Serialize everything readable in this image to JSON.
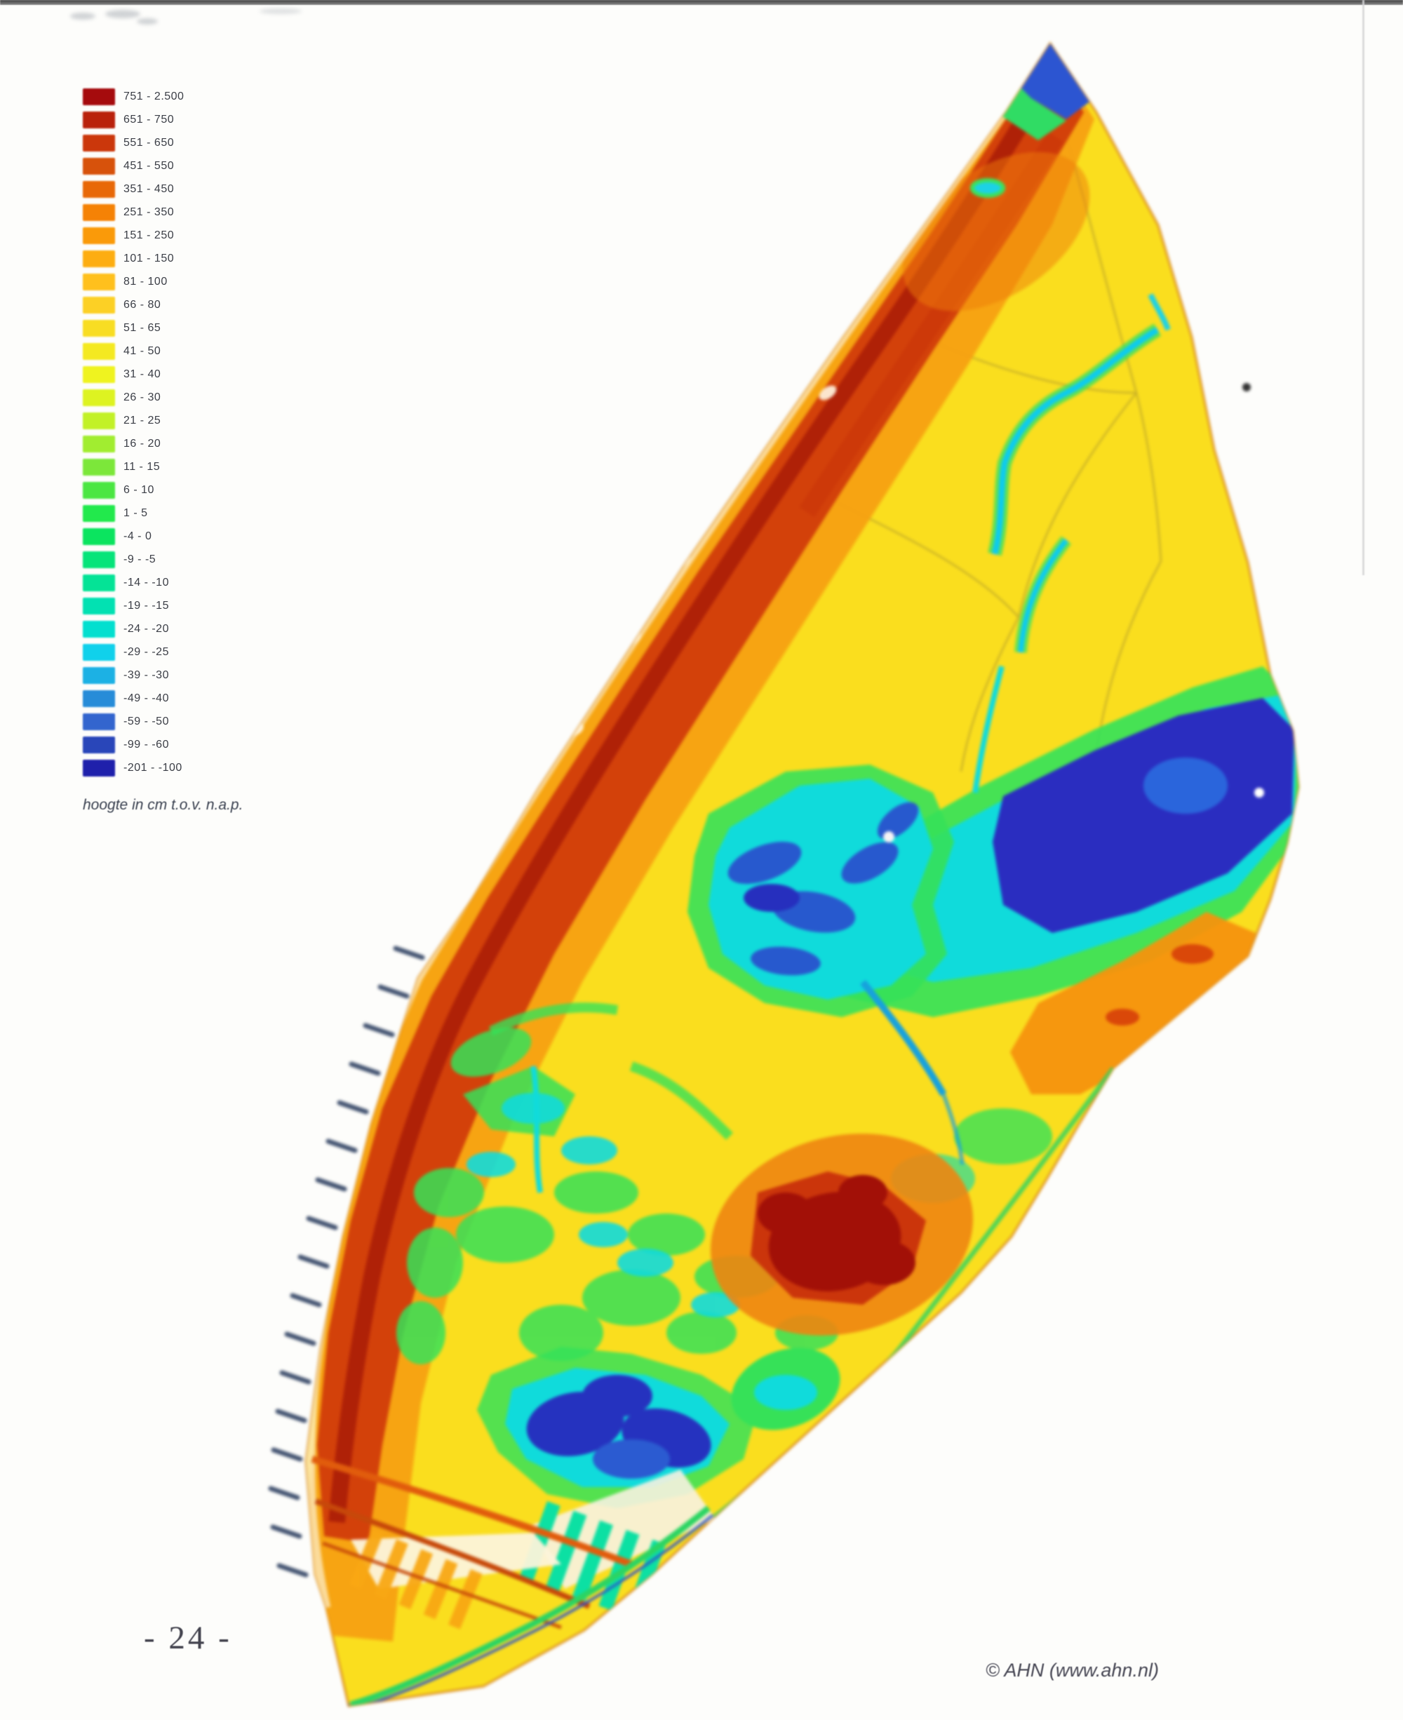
{
  "page": {
    "number_label": "- 24 -",
    "credit": "© AHN (www.ahn.nl)"
  },
  "legend": {
    "caption": "hoogte in cm t.o.v. n.a.p.",
    "classes": [
      {
        "label": "751 - 2.500",
        "color": "#9a0e10"
      },
      {
        "label": "651 - 750",
        "color": "#ae2410"
      },
      {
        "label": "551 - 650",
        "color": "#c03a12"
      },
      {
        "label": "451 - 550",
        "color": "#cd5414"
      },
      {
        "label": "351 - 450",
        "color": "#de6a13"
      },
      {
        "label": "251 - 350",
        "color": "#ec8312"
      },
      {
        "label": "151 - 250",
        "color": "#f29b17"
      },
      {
        "label": "101 - 150",
        "color": "#f6ae20"
      },
      {
        "label": "81 - 100",
        "color": "#f9c02c"
      },
      {
        "label": "66 - 80",
        "color": "#f8d034"
      },
      {
        "label": "51 - 65",
        "color": "#f5dc33"
      },
      {
        "label": "41 - 50",
        "color": "#f2e832"
      },
      {
        "label": "31 - 40",
        "color": "#eef231"
      },
      {
        "label": "26 - 30",
        "color": "#ddf132"
      },
      {
        "label": "21 - 25",
        "color": "#c4ef37"
      },
      {
        "label": "16 - 20",
        "color": "#a5ea3e"
      },
      {
        "label": "11 - 15",
        "color": "#83e447"
      },
      {
        "label": "6 - 10",
        "color": "#55e24d"
      },
      {
        "label": "1 - 5",
        "color": "#2fe455"
      },
      {
        "label": "-4 - 0",
        "color": "#1adf66"
      },
      {
        "label": "-9 - -5",
        "color": "#15df7f"
      },
      {
        "label": "-14 - -10",
        "color": "#13de98"
      },
      {
        "label": "-19 - -15",
        "color": "#12dcb2"
      },
      {
        "label": "-24 - -20",
        "color": "#13dbcc"
      },
      {
        "label": "-29 - -25",
        "color": "#1ecde5"
      },
      {
        "label": "-39 - -30",
        "color": "#27aedd"
      },
      {
        "label": "-49 - -40",
        "color": "#2f8bd0"
      },
      {
        "label": "-59 - -50",
        "color": "#3765c4"
      },
      {
        "label": "-99 - -60",
        "color": "#2c46af"
      },
      {
        "label": "-201 - -100",
        "color": "#20219f"
      }
    ]
  }
}
